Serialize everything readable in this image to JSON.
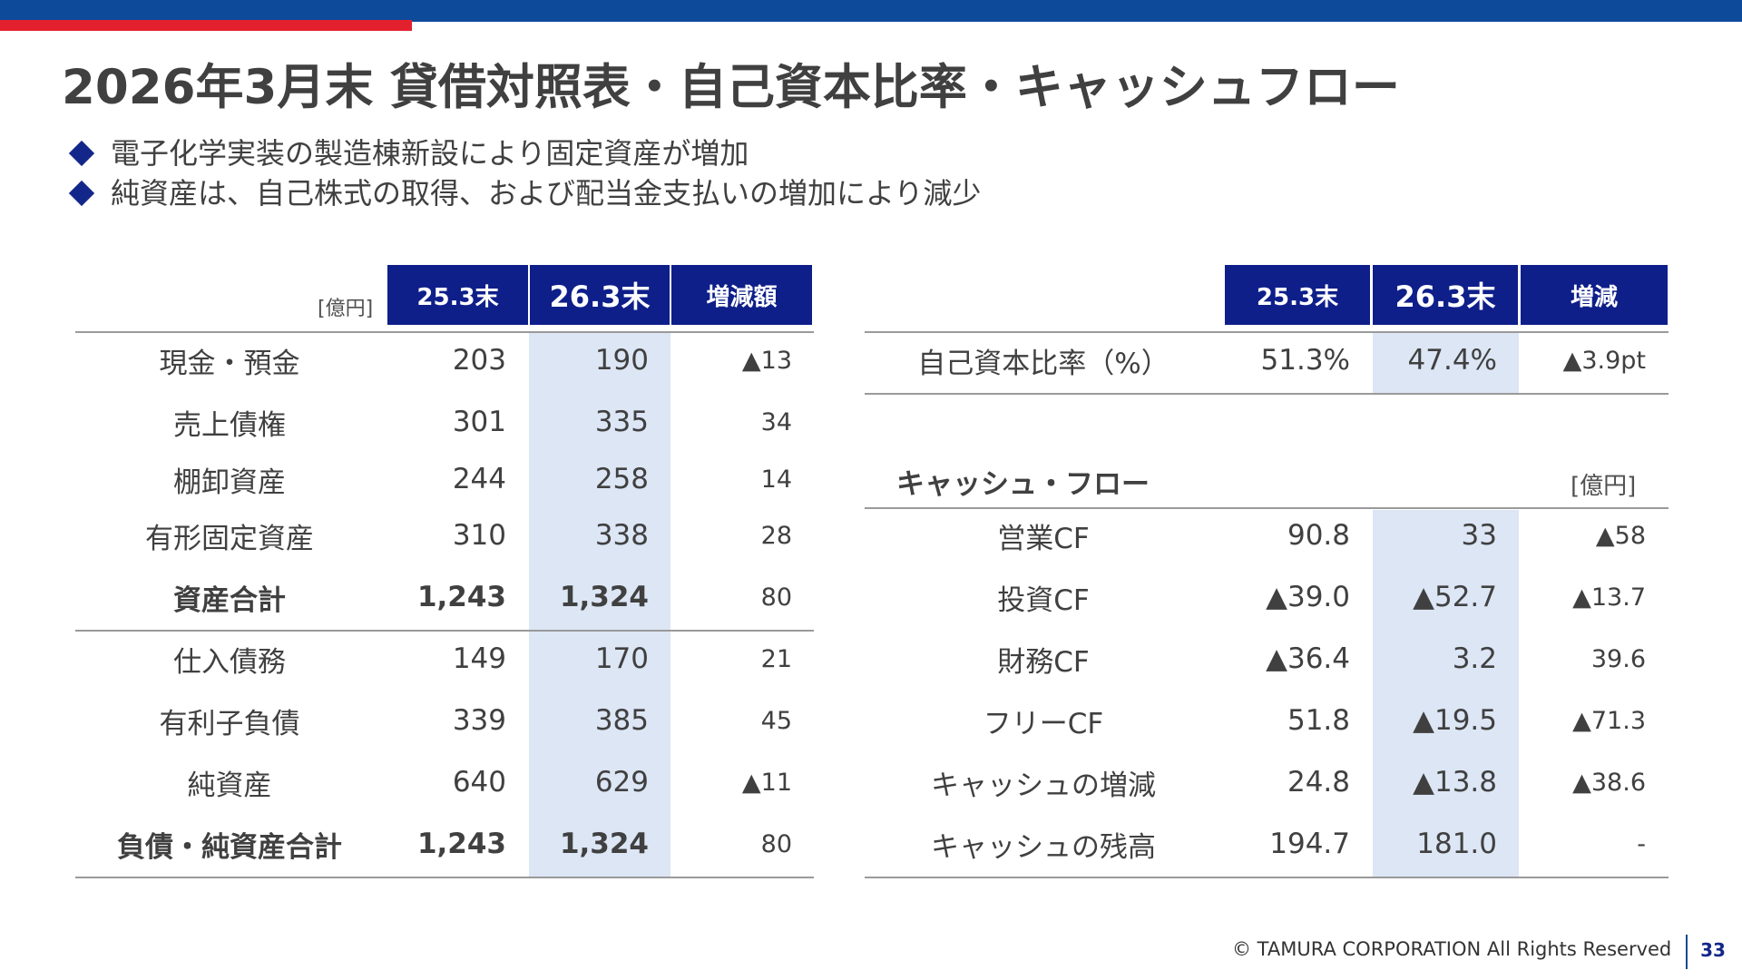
{
  "title": "2026年3月末 貸借対照表・自己資本比率・キャッシュフロー",
  "bullets": [
    "電子化学実装の製造棟新設により固定資産が増加",
    "純資産は、自己株式の取得、および配当金支払いの増加により減少"
  ],
  "balance_sheet": {
    "unit": "[億円]",
    "headers": [
      "25.3末",
      "26.3末",
      "増減額"
    ],
    "rows": [
      {
        "label": "現金・預金",
        "prev": "203",
        "curr": "190",
        "change": "▲13"
      },
      {
        "label": "売上債権",
        "prev": "301",
        "curr": "335",
        "change": "34"
      },
      {
        "label": "棚卸資産",
        "prev": "244",
        "curr": "258",
        "change": "14"
      },
      {
        "label": "有形固定資産",
        "prev": "310",
        "curr": "338",
        "change": "28"
      },
      {
        "label": "資産合計",
        "prev": "1,243",
        "curr": "1,324",
        "change": "80"
      },
      {
        "label": "仕入債務",
        "prev": "149",
        "curr": "170",
        "change": "21"
      },
      {
        "label": "有利子負債",
        "prev": "339",
        "curr": "385",
        "change": "45"
      },
      {
        "label": "純資産",
        "prev": "640",
        "curr": "629",
        "change": "▲11"
      },
      {
        "label": "負債・純資産合計",
        "prev": "1,243",
        "curr": "1,324",
        "change": "80"
      }
    ]
  },
  "equity_ratio": {
    "headers": [
      "25.3末",
      "26.3末",
      "増減"
    ],
    "row": {
      "label": "自己資本比率（%）",
      "prev": "51.3%",
      "curr": "47.4%",
      "change": "▲3.9pt"
    }
  },
  "cash_flow": {
    "title": "キャッシュ・フロー",
    "unit": "[億円]",
    "rows": [
      {
        "label": "営業CF",
        "prev": "90.8",
        "curr": "33",
        "change": "▲58"
      },
      {
        "label": "投資CF",
        "prev": "▲39.0",
        "curr": "▲52.7",
        "change": "▲13.7"
      },
      {
        "label": "財務CF",
        "prev": "▲36.4",
        "curr": "3.2",
        "change": "39.6"
      },
      {
        "label": "フリーCF",
        "prev": "51.8",
        "curr": "▲19.5",
        "change": "▲71.3"
      },
      {
        "label": "キャッシュの増減",
        "prev": "24.8",
        "curr": "▲13.8",
        "change": "▲38.6"
      },
      {
        "label": "キャッシュの残高",
        "prev": "194.7",
        "curr": "181.0",
        "change": "-"
      }
    ]
  },
  "footer": {
    "copyright": "© TAMURA CORPORATION All Rights Reserved",
    "page": "33"
  },
  "colors": {
    "band_blue": "#0d4a9a",
    "band_red": "#e3202d",
    "header_navy": "#0e1f8a",
    "highlight": "#dce6f5"
  }
}
